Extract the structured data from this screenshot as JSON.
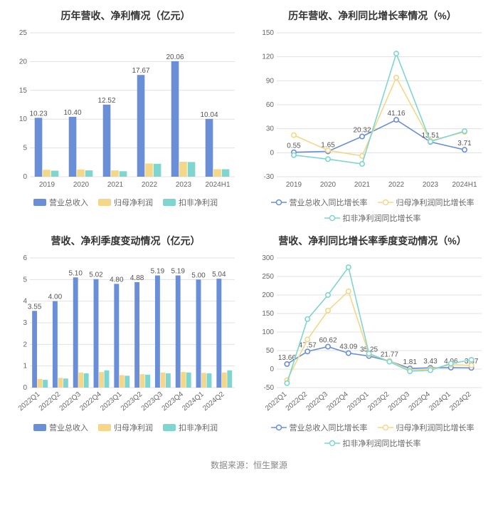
{
  "background_color": "#ffffff",
  "grid_color": "#e0e0e0",
  "axis_color": "#cccccc",
  "title_color": "#333333",
  "tick_fontsize": 10,
  "tick_color": "#666666",
  "title_fontsize": 14,
  "value_label_fontsize": 10,
  "value_label_color": "#555555",
  "footer": "数据来源：恒生聚源",
  "colors": {
    "revenue": "#6a8fd8",
    "net_profit": "#f5d789",
    "nonrec_profit": "#7fd6d0",
    "revenue_line": "#6a8fd8",
    "net_profit_line": "#f5d789",
    "nonrec_line": "#7fd6d0"
  },
  "legend_bar": {
    "revenue": "营业总收入",
    "net_profit": "归母净利润",
    "nonrec": "扣非净利润"
  },
  "legend_line": {
    "revenue": "营业总收入同比增长率",
    "net_profit": "归母净利润同比增长率",
    "nonrec": "扣非净利润同比增长率"
  },
  "chart_tl": {
    "title": "历年营收、净利情况（亿元）",
    "type": "bar",
    "categories": [
      "2019",
      "2020",
      "2021",
      "2022",
      "2023",
      "2024H1"
    ],
    "ylim": [
      0,
      25
    ],
    "ytick_step": 5,
    "series": [
      {
        "key": "revenue",
        "values": [
          10.23,
          10.4,
          12.52,
          17.67,
          20.06,
          10.04
        ],
        "show_label": true
      },
      {
        "key": "net_profit",
        "values": [
          1.2,
          1.25,
          1.1,
          2.3,
          2.6,
          1.3
        ],
        "show_label": false
      },
      {
        "key": "nonrec",
        "values": [
          1.05,
          1.1,
          0.95,
          2.25,
          2.55,
          1.3
        ],
        "show_label": false
      }
    ],
    "bar_group_width": 0.72
  },
  "chart_tr": {
    "title": "历年营收、净利同比增长率情况（%）",
    "type": "line",
    "categories": [
      "2019",
      "2020",
      "2021",
      "2022",
      "2023",
      "2024H1"
    ],
    "ylim": [
      -30,
      150
    ],
    "ytick_step": 30,
    "series": [
      {
        "key": "revenue",
        "values": [
          0.55,
          1.65,
          20.32,
          41.16,
          13.51,
          3.71
        ],
        "show_label": true
      },
      {
        "key": "net_profit",
        "values": [
          22,
          3,
          -4,
          94,
          15,
          26
        ],
        "show_label": false
      },
      {
        "key": "nonrec",
        "values": [
          -3,
          -8,
          -14,
          124,
          14,
          27
        ],
        "show_label": false
      }
    ]
  },
  "chart_bl": {
    "title": "营收、净利季度变动情况（亿元）",
    "type": "bar",
    "categories": [
      "2022Q1",
      "2022Q2",
      "2022Q3",
      "2022Q4",
      "2023Q1",
      "2023Q2",
      "2023Q3",
      "2023Q4",
      "2024Q1",
      "2024Q2"
    ],
    "ylim": [
      0,
      6
    ],
    "ytick_step": 1,
    "rotate_x": true,
    "series": [
      {
        "key": "revenue",
        "values": [
          3.55,
          4.0,
          5.1,
          5.02,
          4.8,
          4.88,
          5.19,
          5.19,
          5.0,
          5.04
        ],
        "show_label": true
      },
      {
        "key": "net_profit",
        "values": [
          0.4,
          0.45,
          0.7,
          0.72,
          0.58,
          0.62,
          0.7,
          0.72,
          0.68,
          0.7
        ],
        "show_label": false
      },
      {
        "key": "nonrec",
        "values": [
          0.36,
          0.42,
          0.66,
          0.8,
          0.55,
          0.6,
          0.66,
          0.7,
          0.66,
          0.8
        ],
        "show_label": false
      }
    ],
    "bar_group_width": 0.78
  },
  "chart_br": {
    "title": "营收、净利同比增长率季度变动情况（%）",
    "type": "line",
    "categories": [
      "2022Q1",
      "2022Q2",
      "2022Q3",
      "2022Q4",
      "2023Q1",
      "2023Q2",
      "2023Q3",
      "2023Q4",
      "2024Q1",
      "2024Q2"
    ],
    "ylim": [
      -50,
      300
    ],
    "ytick_step": 50,
    "rotate_x": true,
    "series": [
      {
        "key": "revenue",
        "values": [
          13.66,
          47.57,
          60.62,
          43.09,
          35.25,
          21.77,
          1.81,
          3.43,
          4.06,
          3.37
        ],
        "show_label": true
      },
      {
        "key": "net_profit",
        "values": [
          -30,
          80,
          158,
          210,
          40,
          22,
          -3,
          0,
          12,
          10
        ],
        "show_label": false
      },
      {
        "key": "nonrec",
        "values": [
          -38,
          135,
          200,
          275,
          42,
          20,
          -6,
          -3,
          15,
          25
        ],
        "show_label": false
      }
    ]
  }
}
